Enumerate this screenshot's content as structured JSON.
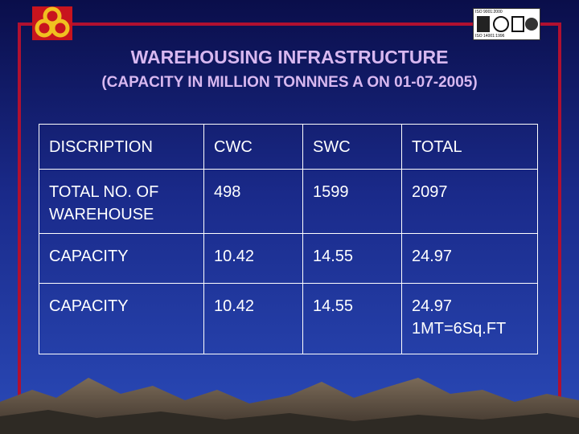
{
  "header": {
    "title": "WAREHOUSING INFRASTRUCTURE",
    "subtitle": "(CAPACITY IN MILLION TONNNES A ON 01-07-2005)"
  },
  "logos": {
    "left": {
      "icon": "organization-emblem-icon",
      "color": "#f0c020"
    },
    "right": {
      "icon": "iso-certification-icon",
      "top_text": "ISO 9001:2000",
      "bottom_text": "ISO 14001:1996"
    }
  },
  "table": {
    "rows": [
      [
        "DISCRIPTION",
        "CWC",
        "SWC",
        "TOTAL"
      ],
      [
        "TOTAL NO. OF WAREHOUSE",
        "498",
        "1599",
        "2097"
      ],
      [
        "CAPACITY",
        "10.42",
        "14.55",
        "24.97"
      ],
      [
        "CAPACITY",
        "10.42",
        "14.55",
        "24.97"
      ]
    ],
    "note": "1MT=6Sq.FT"
  },
  "colors": {
    "frame": "#b01030",
    "title": "#d8b8f0",
    "text": "#ffffff",
    "background_top": "#0a0e4a",
    "background_bottom": "#2a4ab8"
  }
}
